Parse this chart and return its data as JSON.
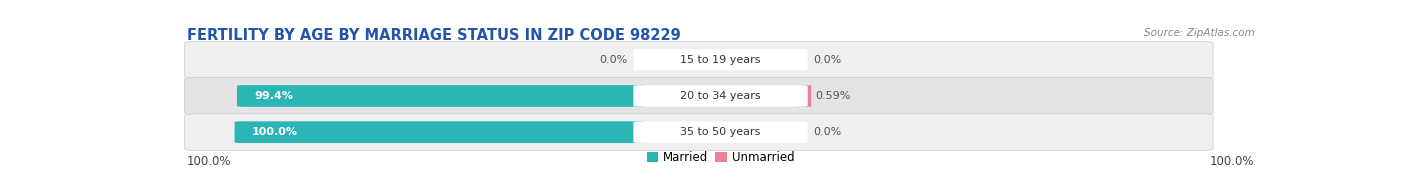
{
  "title": "FERTILITY BY AGE BY MARRIAGE STATUS IN ZIP CODE 98229",
  "source": "Source: ZipAtlas.com",
  "rows": [
    {
      "label": "15 to 19 years",
      "married": 0.0,
      "unmarried": 0.0
    },
    {
      "label": "20 to 34 years",
      "married": 99.4,
      "unmarried": 0.59
    },
    {
      "label": "35 to 50 years",
      "married": 100.0,
      "unmarried": 0.0
    }
  ],
  "married_color": "#2cb5b5",
  "unmarried_color": "#f08098",
  "row_bg_even": "#efefef",
  "row_bg_odd": "#e4e4e4",
  "left_axis_label": "100.0%",
  "right_axis_label": "100.0%",
  "axis_label_fontsize": 8.5,
  "title_fontsize": 10.5,
  "title_color": "#2255aa",
  "source_color": "#888888",
  "label_fontsize": 8,
  "value_fontsize": 8,
  "legend_married": "Married",
  "legend_unmarried": "Unmarried",
  "legend_fontsize": 8.5
}
